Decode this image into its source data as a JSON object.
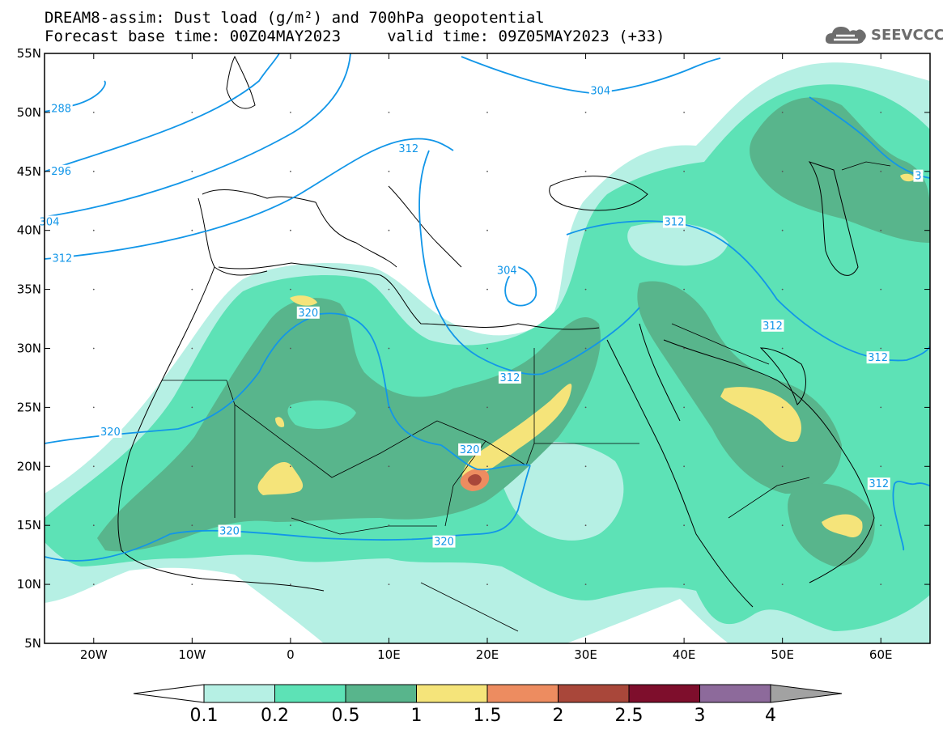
{
  "title_line1": "DREAM8-assim: Dust load (g/m²) and 700hPa geopotential",
  "title_line2": "Forecast base time: 00Z04MAY2023     valid time: 09Z05MAY2023 (+33)",
  "logo_text": "SEEVCCC",
  "map": {
    "lon_range": [
      -25,
      65
    ],
    "lat_range": [
      5,
      55
    ],
    "lat_ticks": [
      {
        "value": 55,
        "label": "55N"
      },
      {
        "value": 50,
        "label": "50N"
      },
      {
        "value": 45,
        "label": "45N"
      },
      {
        "value": 40,
        "label": "40N"
      },
      {
        "value": 35,
        "label": "35N"
      },
      {
        "value": 30,
        "label": "30N"
      },
      {
        "value": 25,
        "label": "25N"
      },
      {
        "value": 20,
        "label": "20N"
      },
      {
        "value": 15,
        "label": "15N"
      },
      {
        "value": 10,
        "label": "10N"
      },
      {
        "value": 5,
        "label": "5N"
      }
    ],
    "lon_ticks": [
      {
        "value": -20,
        "label": "20W"
      },
      {
        "value": -10,
        "label": "10W"
      },
      {
        "value": 0,
        "label": "0"
      },
      {
        "value": 10,
        "label": "10E"
      },
      {
        "value": 20,
        "label": "20E"
      },
      {
        "value": 30,
        "label": "30E"
      },
      {
        "value": 40,
        "label": "40E"
      },
      {
        "value": 50,
        "label": "50E"
      },
      {
        "value": 60,
        "label": "60E"
      }
    ],
    "contour_color": "#1296e8",
    "contour_labels": [
      {
        "text": "288",
        "lon": -23.3,
        "lat": 50.3
      },
      {
        "text": "296",
        "lon": -23.3,
        "lat": 45.0
      },
      {
        "text": "304",
        "lon": -24.5,
        "lat": 40.7
      },
      {
        "text": "312",
        "lon": -23.2,
        "lat": 37.6
      },
      {
        "text": "312",
        "lon": 12.0,
        "lat": 46.9
      },
      {
        "text": "304",
        "lon": 31.5,
        "lat": 51.8
      },
      {
        "text": "312",
        "lon": 39.0,
        "lat": 40.7
      },
      {
        "text": "304",
        "lon": 22.0,
        "lat": 36.6
      },
      {
        "text": "312",
        "lon": 49.0,
        "lat": 31.9
      },
      {
        "text": "312",
        "lon": 59.7,
        "lat": 29.2
      },
      {
        "text": "312",
        "lon": 22.3,
        "lat": 27.5
      },
      {
        "text": "320",
        "lon": 1.8,
        "lat": 33.0
      },
      {
        "text": "320",
        "lon": -18.3,
        "lat": 22.9
      },
      {
        "text": "320",
        "lon": 18.2,
        "lat": 21.4
      },
      {
        "text": "320",
        "lon": -6.2,
        "lat": 14.5
      },
      {
        "text": "320",
        "lon": 15.6,
        "lat": 13.6
      },
      {
        "text": "312",
        "lon": 59.8,
        "lat": 18.5
      },
      {
        "text": "3",
        "lon": 63.8,
        "lat": 44.6
      }
    ]
  },
  "colorbar": {
    "colors": [
      "#ffffff",
      "#b6f0e4",
      "#5de2b6",
      "#58b58c",
      "#f5e47a",
      "#ed8c60",
      "#a9473a",
      "#7e0e2c",
      "#8d6a9b",
      "#a2a2a2"
    ],
    "labels": [
      "0.1",
      "0.2",
      "0.5",
      "1",
      "1.5",
      "2",
      "2.5",
      "3",
      "4"
    ]
  }
}
